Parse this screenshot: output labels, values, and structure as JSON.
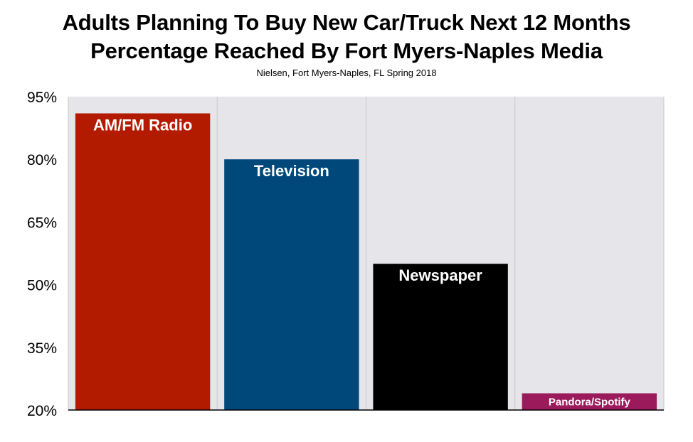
{
  "chart_data": {
    "type": "bar",
    "title": "Adults Planning To Buy New Car/Truck Next 12 Months",
    "subtitle_line": "Percentage Reached By Fort Myers-Naples Media",
    "source": "Nielsen, Fort Myers-Naples, FL Spring 2018",
    "categories": [
      "AM/FM Radio",
      "Television",
      "Newspaper",
      "Pandora/Spotify"
    ],
    "values": [
      91,
      80,
      55,
      24
    ],
    "colors": [
      "#b31b00",
      "#00487a",
      "#000000",
      "#9b1a5b"
    ],
    "ylim": [
      20,
      95
    ],
    "yticks": [
      95,
      80,
      65,
      50,
      35,
      20
    ],
    "ytick_labels": [
      "95%",
      "80%",
      "65%",
      "50%",
      "35%",
      "20%"
    ],
    "xlabel": "",
    "ylabel": "",
    "grid": "vertical",
    "legend": "none",
    "plot_background": "#e5e5ea"
  }
}
